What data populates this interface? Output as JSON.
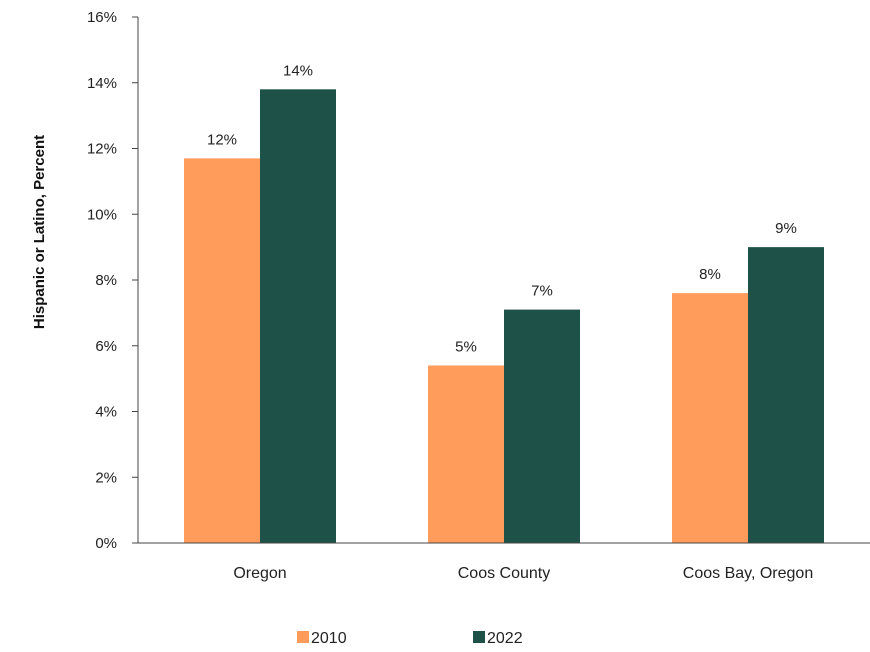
{
  "chart_data": {
    "type": "bar",
    "categories": [
      "Oregon",
      "Coos County",
      "Coos Bay, Oregon"
    ],
    "series": [
      {
        "name": "2010",
        "values": [
          11.7,
          5.4,
          7.6
        ],
        "labels": [
          "12%",
          "5%",
          "8%"
        ],
        "color": "#FF9C5B"
      },
      {
        "name": "2022",
        "values": [
          13.8,
          7.1,
          9.0
        ],
        "labels": [
          "14%",
          "7%",
          "9%"
        ],
        "color": "#1E5248"
      }
    ],
    "ylabel": "Hispanic or Latino, Percent",
    "ylim": [
      0,
      16
    ],
    "yticks": [
      0,
      2,
      4,
      6,
      8,
      10,
      12,
      14,
      16
    ],
    "ytick_labels": [
      "0%",
      "2%",
      "4%",
      "6%",
      "8%",
      "10%",
      "12%",
      "14%",
      "16%"
    ],
    "legend_position": "bottom",
    "grid": false
  }
}
